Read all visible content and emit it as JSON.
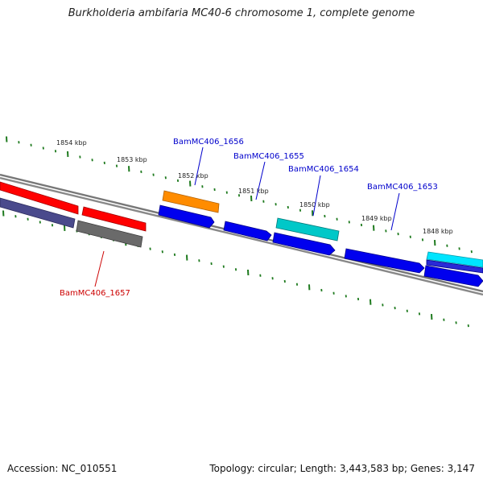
{
  "title": "Burkholderia ambifaria MC40-6 chromosome 1, complete genome",
  "footer": {
    "accession": "Accession: NC_010551",
    "summary": "Topology: circular; Length: 3,443,583 bp; Genes: 3,147"
  },
  "colors": {
    "backbone": "#7a7a7a",
    "tick": "#1e7a1e",
    "label_blue": "#0000cc",
    "label_red": "#cc0000"
  },
  "kbp_labels": [
    "1854 kbp",
    "1853 kbp",
    "1852 kbp",
    "1851 kbp",
    "1850 kbp",
    "1849 kbp",
    "1848 kbp"
  ],
  "gene_labels": [
    {
      "name": "BamMC406_1656",
      "color": "#0000cc"
    },
    {
      "name": "BamMC406_1655",
      "color": "#0000cc"
    },
    {
      "name": "BamMC406_1654",
      "color": "#0000cc"
    },
    {
      "name": "BamMC406_1653",
      "color": "#0000cc"
    },
    {
      "name": "BamMC406_1657",
      "color": "#cc0000"
    }
  ],
  "feature_colors": {
    "red": "#ff0000",
    "slate": "#4a4a8c",
    "gray": "#6a6a6a",
    "orange": "#ff8c00",
    "blue": "#0000ee",
    "cyan": "#00c8c8",
    "light_cyan": "#00e5ff"
  }
}
